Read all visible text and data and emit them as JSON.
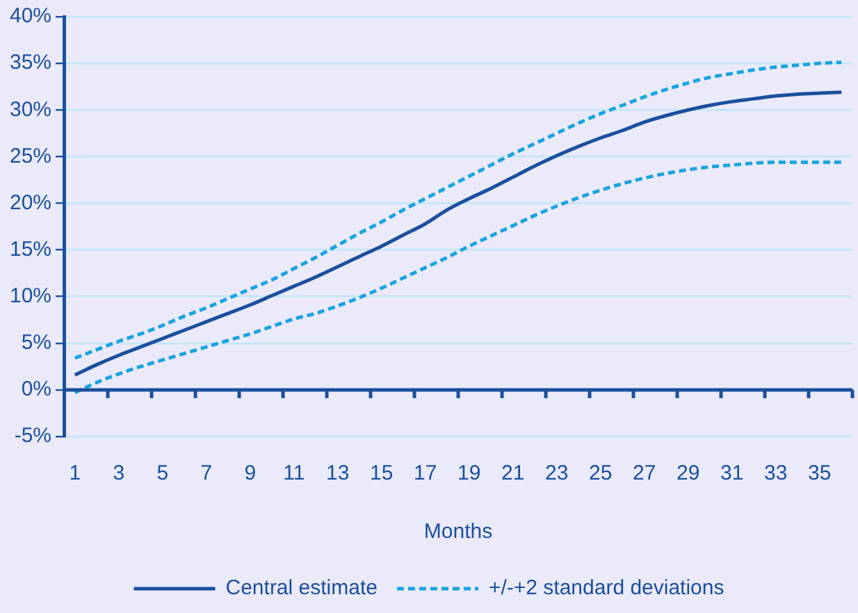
{
  "chart_data": {
    "type": "line",
    "xlabel": "Months",
    "x": [
      1,
      2,
      3,
      4,
      5,
      6,
      7,
      8,
      9,
      10,
      11,
      12,
      13,
      14,
      15,
      16,
      17,
      18,
      19,
      20,
      21,
      22,
      23,
      24,
      25,
      26,
      27,
      28,
      29,
      30,
      31,
      32,
      33,
      34,
      35,
      36
    ],
    "xlim": [
      0.5,
      36.5
    ],
    "xticks": [
      1,
      3,
      5,
      7,
      9,
      11,
      13,
      15,
      17,
      19,
      21,
      23,
      25,
      27,
      29,
      31,
      33,
      35
    ],
    "series": [
      {
        "name": "Central estimate",
        "color": "#1b4f9c",
        "line_style": "solid",
        "values": [
          1.6,
          2.7,
          3.7,
          4.6,
          5.5,
          6.4,
          7.3,
          8.2,
          9.1,
          10.1,
          11.1,
          12.1,
          13.2,
          14.3,
          15.4,
          16.6,
          17.8,
          19.3,
          20.5,
          21.6,
          22.8,
          24.0,
          25.1,
          26.1,
          27.0,
          27.8,
          28.7,
          29.4,
          30.0,
          30.5,
          30.9,
          31.2,
          31.5,
          31.7,
          31.8,
          31.9
        ]
      },
      {
        "name": "+/-+2 standard deviations",
        "color": "#1aa3e0",
        "line_style": "dashed",
        "values": [
          3.4,
          4.3,
          5.2,
          6.0,
          6.9,
          7.9,
          8.8,
          9.8,
          10.8,
          11.8,
          13.0,
          14.2,
          15.5,
          16.8,
          18.0,
          19.3,
          20.5,
          21.7,
          22.9,
          24.1,
          25.3,
          26.4,
          27.5,
          28.6,
          29.6,
          30.5,
          31.4,
          32.2,
          32.9,
          33.5,
          33.9,
          34.3,
          34.6,
          34.8,
          35.0,
          35.1
        ]
      },
      {
        "color": "#1aa3e0",
        "line_style": "dashed",
        "values": [
          -0.3,
          0.8,
          1.7,
          2.5,
          3.2,
          3.9,
          4.6,
          5.3,
          6.0,
          6.8,
          7.6,
          8.2,
          9.0,
          9.9,
          10.9,
          12.0,
          13.1,
          14.2,
          15.4,
          16.5,
          17.6,
          18.7,
          19.7,
          20.6,
          21.4,
          22.1,
          22.7,
          23.2,
          23.6,
          23.9,
          24.1,
          24.3,
          24.4,
          24.4,
          24.4,
          24.4
        ]
      }
    ],
    "ylim": [
      -5,
      40
    ],
    "yticks": [
      {
        "value": -5,
        "label": "-5%"
      },
      {
        "value": 0,
        "label": "0%"
      },
      {
        "value": 5,
        "label": "5%"
      },
      {
        "value": 10,
        "label": "10%"
      },
      {
        "value": 15,
        "label": "15%"
      },
      {
        "value": 20,
        "label": "20%"
      },
      {
        "value": 25,
        "label": "25%"
      },
      {
        "value": 30,
        "label": "30%"
      },
      {
        "value": 35,
        "label": "35%"
      },
      {
        "value": 40,
        "label": "40%"
      }
    ],
    "ref_lines": [
      {
        "axis": "y",
        "value": 0,
        "color": "#1b4f9c"
      }
    ],
    "grid": "y",
    "legend": "bottom",
    "marker": "none"
  }
}
